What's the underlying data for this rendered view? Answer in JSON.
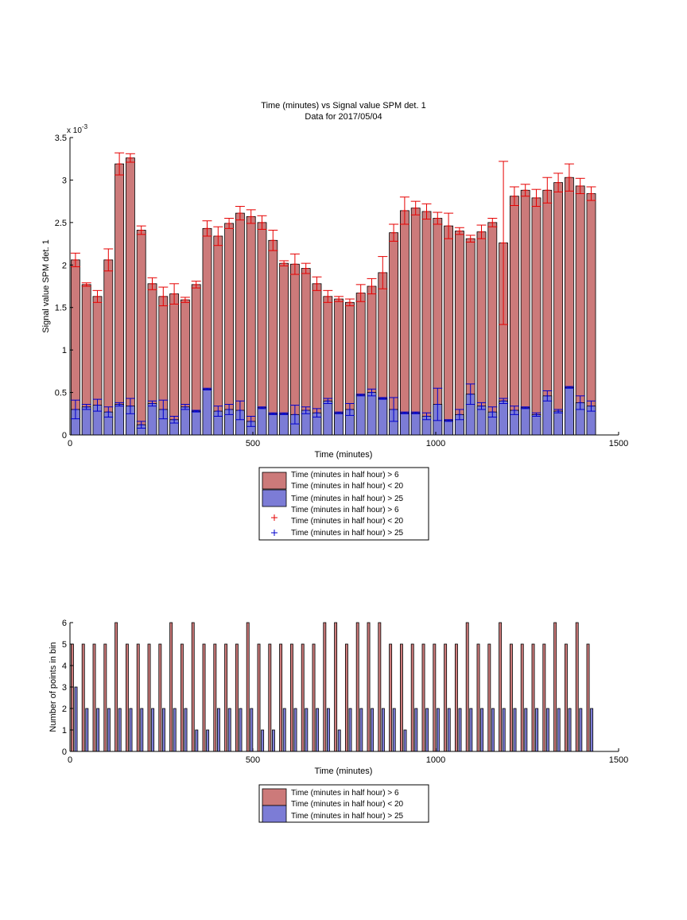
{
  "colors": {
    "high_fill": "#cc7a7a",
    "low_fill": "#7c7cd6",
    "high_err": "#e60000",
    "low_err": "#0000cc",
    "axis": "#000000"
  },
  "top_chart": {
    "title": "Time (minutes) vs Signal value SPM det. 1",
    "subtitle": "Data for 2017/05/04",
    "xlabel": "Time (minutes)",
    "ylabel": "Signal value SPM det. 1",
    "exponent_prefix": "x 10",
    "exponent_power": "-3",
    "legend": [
      {
        "line1": "Time (minutes in half hour) > 6",
        "line2": "Time (minutes in half hour) < 20",
        "marker": "red-box"
      },
      {
        "line1": "Time (minutes in half hour) > 25",
        "line2": "",
        "marker": "blue-box"
      },
      {
        "line1": "Time (minutes in half hour) > 6",
        "line2": "Time (minutes in half hour) < 20",
        "marker": "red-plus"
      },
      {
        "line1": "Time (minutes in half hour) > 25",
        "line2": "",
        "marker": "blue-plus"
      }
    ]
  },
  "bottom_chart": {
    "xlabel": "Time (minutes)",
    "ylabel": "Number of points in bin",
    "legend": [
      {
        "line1": "Time (minutes in half hour) > 6",
        "line2": "Time (minutes in half hour) < 20"
      },
      {
        "line1": "Time (minutes in half hour) > 25",
        "line2": ""
      }
    ]
  },
  "chart_data": [
    {
      "type": "bar",
      "title": "Time (minutes) vs Signal value SPM det. 1",
      "subtitle": "Data for 2017/05/04",
      "xlabel": "Time (minutes)",
      "ylabel": "Signal value SPM det. 1",
      "y_multiplier": "x 10^-3",
      "xlim": [
        0,
        1500
      ],
      "ylim": [
        0,
        3.5
      ],
      "xticks": [
        0,
        500,
        1000,
        1500
      ],
      "yticks": [
        0,
        0.5,
        1,
        1.5,
        2,
        2.5,
        3,
        3.5
      ],
      "x": [
        15,
        45,
        75,
        105,
        135,
        165,
        195,
        225,
        255,
        285,
        315,
        345,
        375,
        405,
        435,
        465,
        495,
        525,
        555,
        585,
        615,
        645,
        675,
        705,
        735,
        765,
        795,
        825,
        855,
        885,
        915,
        945,
        975,
        1005,
        1035,
        1065,
        1095,
        1125,
        1155,
        1185,
        1215,
        1245,
        1275,
        1305,
        1335,
        1365,
        1395,
        1425
      ],
      "series": [
        {
          "name": "Time (minutes in half hour) > 6 Time (minutes in half hour) < 20",
          "values": [
            2.06,
            1.77,
            1.63,
            2.06,
            3.19,
            3.26,
            2.41,
            1.78,
            1.63,
            1.66,
            1.59,
            1.77,
            2.43,
            2.34,
            2.49,
            2.61,
            2.57,
            2.5,
            2.29,
            2.02,
            2.01,
            1.96,
            1.78,
            1.63,
            1.6,
            1.56,
            1.67,
            1.75,
            1.91,
            2.38,
            2.64,
            2.67,
            2.63,
            2.55,
            2.46,
            2.4,
            2.31,
            2.39,
            2.5,
            2.26,
            2.81,
            2.88,
            2.79,
            2.88,
            2.97,
            3.03,
            2.93,
            2.84
          ],
          "errors": [
            0.08,
            0.02,
            0.07,
            0.13,
            0.13,
            0.05,
            0.05,
            0.07,
            0.11,
            0.12,
            0.03,
            0.04,
            0.09,
            0.11,
            0.06,
            0.08,
            0.08,
            0.08,
            0.12,
            0.03,
            0.12,
            0.06,
            0.08,
            0.07,
            0.03,
            0.04,
            0.1,
            0.09,
            0.19,
            0.1,
            0.16,
            0.08,
            0.09,
            0.07,
            0.15,
            0.04,
            0.04,
            0.08,
            0.05,
            0.96,
            0.11,
            0.07,
            0.1,
            0.15,
            0.11,
            0.16,
            0.09,
            0.08
          ]
        },
        {
          "name": "Time (minutes in half hour) > 25",
          "values": [
            0.3,
            0.33,
            0.35,
            0.27,
            0.36,
            0.34,
            0.12,
            0.37,
            0.3,
            0.18,
            0.33,
            0.28,
            0.54,
            0.28,
            0.3,
            0.29,
            0.16,
            0.32,
            0.25,
            0.25,
            0.24,
            0.29,
            0.26,
            0.4,
            0.26,
            0.3,
            0.47,
            0.5,
            0.43,
            0.3,
            0.26,
            0.26,
            0.22,
            0.36,
            0.17,
            0.24,
            0.48,
            0.34,
            0.27,
            0.4,
            0.29,
            0.32,
            0.24,
            0.46,
            0.28,
            0.56,
            0.38,
            0.34
          ],
          "errors": [
            0.11,
            0.03,
            0.07,
            0.06,
            0.02,
            0.09,
            0.04,
            0.03,
            0.11,
            0.04,
            0.03,
            0.01,
            0.01,
            0.06,
            0.06,
            0.11,
            0.06,
            0.01,
            0.01,
            0.01,
            0.11,
            0.04,
            0.05,
            0.03,
            0.01,
            0.07,
            0.01,
            0.04,
            0.01,
            0.14,
            0.01,
            0.01,
            0.04,
            0.19,
            0.01,
            0.06,
            0.12,
            0.04,
            0.06,
            0.03,
            0.05,
            0.01,
            0.02,
            0.06,
            0.02,
            0.01,
            0.08,
            0.06
          ]
        }
      ],
      "legend_position": "below"
    },
    {
      "type": "bar",
      "xlabel": "Time (minutes)",
      "ylabel": "Number of points in bin",
      "xlim": [
        0,
        1500
      ],
      "ylim": [
        0,
        6
      ],
      "xticks": [
        0,
        500,
        1000,
        1500
      ],
      "yticks": [
        0,
        1,
        2,
        3,
        4,
        5,
        6
      ],
      "x": [
        15,
        45,
        75,
        105,
        135,
        165,
        195,
        225,
        255,
        285,
        315,
        345,
        375,
        405,
        435,
        465,
        495,
        525,
        555,
        585,
        615,
        645,
        675,
        705,
        735,
        765,
        795,
        825,
        855,
        885,
        915,
        945,
        975,
        1005,
        1035,
        1065,
        1095,
        1125,
        1155,
        1185,
        1215,
        1245,
        1275,
        1305,
        1335,
        1365,
        1395,
        1425
      ],
      "series": [
        {
          "name": "Time (minutes in half hour) > 6 Time (minutes in half hour) < 20",
          "values": [
            5,
            5,
            5,
            5,
            6,
            5,
            5,
            5,
            5,
            6,
            5,
            6,
            5,
            5,
            5,
            5,
            6,
            5,
            5,
            5,
            5,
            5,
            5,
            6,
            6,
            5,
            6,
            6,
            6,
            5,
            5,
            5,
            5,
            5,
            5,
            5,
            6,
            5,
            5,
            6,
            5,
            5,
            5,
            5,
            6,
            5,
            6,
            5
          ]
        },
        {
          "name": "Time (minutes in half hour) > 25",
          "values": [
            3,
            2,
            2,
            2,
            2,
            2,
            2,
            2,
            2,
            2,
            2,
            1,
            1,
            2,
            2,
            2,
            2,
            1,
            1,
            2,
            2,
            2,
            2,
            2,
            1,
            2,
            2,
            2,
            2,
            2,
            1,
            2,
            2,
            2,
            2,
            2,
            2,
            2,
            2,
            2,
            2,
            2,
            2,
            2,
            2,
            2,
            2,
            2
          ]
        }
      ],
      "legend_position": "below"
    }
  ]
}
